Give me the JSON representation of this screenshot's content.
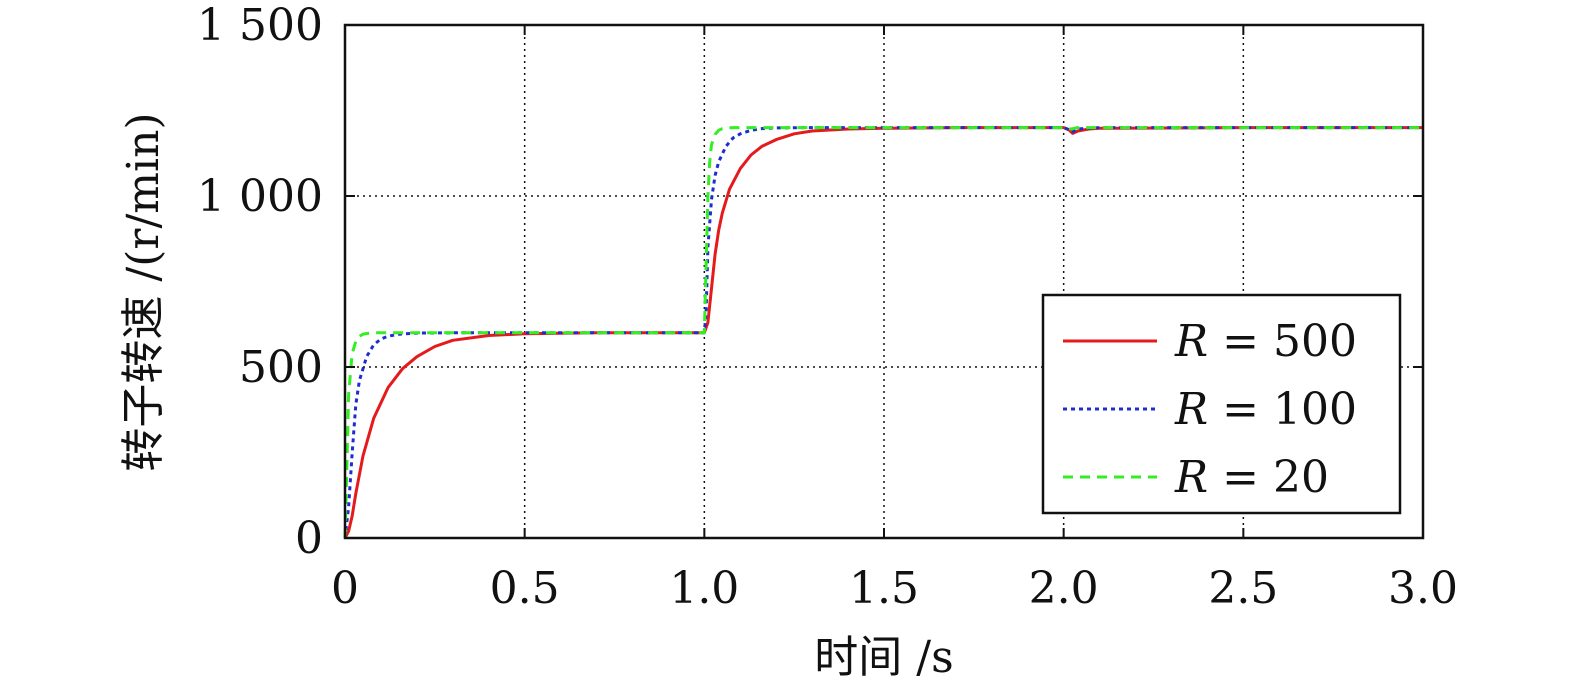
{
  "chart_data": {
    "type": "line",
    "xlabel": "时间 /s",
    "ylabel": "转子转速 /(r/min)",
    "xlim": [
      0,
      3.0
    ],
    "ylim": [
      0,
      1500
    ],
    "x_ticks": [
      0,
      0.5,
      1.0,
      1.5,
      2.0,
      2.5,
      3.0
    ],
    "x_tick_labels": [
      "0",
      "0.5",
      "1.0",
      "1.5",
      "2.0",
      "2.5",
      "3.0"
    ],
    "y_ticks": [
      0,
      500,
      1000,
      1500
    ],
    "y_tick_labels": [
      "0",
      "500",
      "1 000",
      "1 500"
    ],
    "grid": true,
    "legend_position": "bottom-right",
    "series": [
      {
        "name": "R = 500",
        "legend_var": "R",
        "legend_rest": " = 500",
        "color": "#e41a1c",
        "dash": "solid",
        "x": [
          0,
          0.01,
          0.02,
          0.03,
          0.05,
          0.08,
          0.12,
          0.16,
          0.2,
          0.25,
          0.3,
          0.4,
          0.5,
          0.7,
          1.0,
          1.01,
          1.02,
          1.03,
          1.04,
          1.05,
          1.07,
          1.1,
          1.13,
          1.16,
          1.2,
          1.25,
          1.3,
          1.4,
          1.5,
          1.7,
          2.0,
          2.015,
          2.025,
          2.04,
          2.07,
          2.1,
          2.5,
          3.0
        ],
        "y": [
          0,
          20,
          65,
          130,
          240,
          350,
          440,
          495,
          530,
          560,
          578,
          592,
          597,
          600,
          600,
          630,
          730,
          830,
          900,
          950,
          1020,
          1080,
          1120,
          1145,
          1165,
          1182,
          1190,
          1196,
          1198,
          1200,
          1200,
          1193,
          1183,
          1190,
          1196,
          1198,
          1200,
          1200
        ]
      },
      {
        "name": "R = 100",
        "legend_var": "R",
        "legend_rest": " = 100",
        "color": "#1f2cd1",
        "dash": "4,4",
        "x": [
          0,
          0.01,
          0.02,
          0.03,
          0.04,
          0.06,
          0.08,
          0.1,
          0.12,
          0.15,
          0.2,
          0.3,
          1.0,
          1.005,
          1.01,
          1.02,
          1.03,
          1.04,
          1.06,
          1.08,
          1.1,
          1.13,
          1.16,
          1.2,
          1.3,
          2.0,
          2.015,
          2.025,
          2.04,
          2.1,
          3.0
        ],
        "y": [
          0,
          90,
          250,
          390,
          460,
          530,
          565,
          582,
          590,
          596,
          599,
          600,
          600,
          660,
          850,
          990,
          1060,
          1100,
          1145,
          1170,
          1182,
          1192,
          1197,
          1199,
          1200,
          1200,
          1194,
          1188,
          1196,
          1200,
          1200
        ]
      },
      {
        "name": "R = 20",
        "legend_var": "R",
        "legend_rest": " = 20",
        "color": "#33ee22",
        "dash": "10,7",
        "x": [
          0,
          0.005,
          0.01,
          0.02,
          0.03,
          0.04,
          0.05,
          0.06,
          0.08,
          0.1,
          1.0,
          1.005,
          1.01,
          1.015,
          1.02,
          1.03,
          1.04,
          1.05,
          1.06,
          1.08,
          1.1,
          2.0,
          2.02,
          2.04,
          3.0
        ],
        "y": [
          0,
          200,
          420,
          540,
          575,
          590,
          596,
          598,
          600,
          600,
          600,
          800,
          1000,
          1100,
          1150,
          1180,
          1192,
          1197,
          1199,
          1200,
          1200,
          1200,
          1196,
          1200,
          1200
        ]
      }
    ]
  }
}
